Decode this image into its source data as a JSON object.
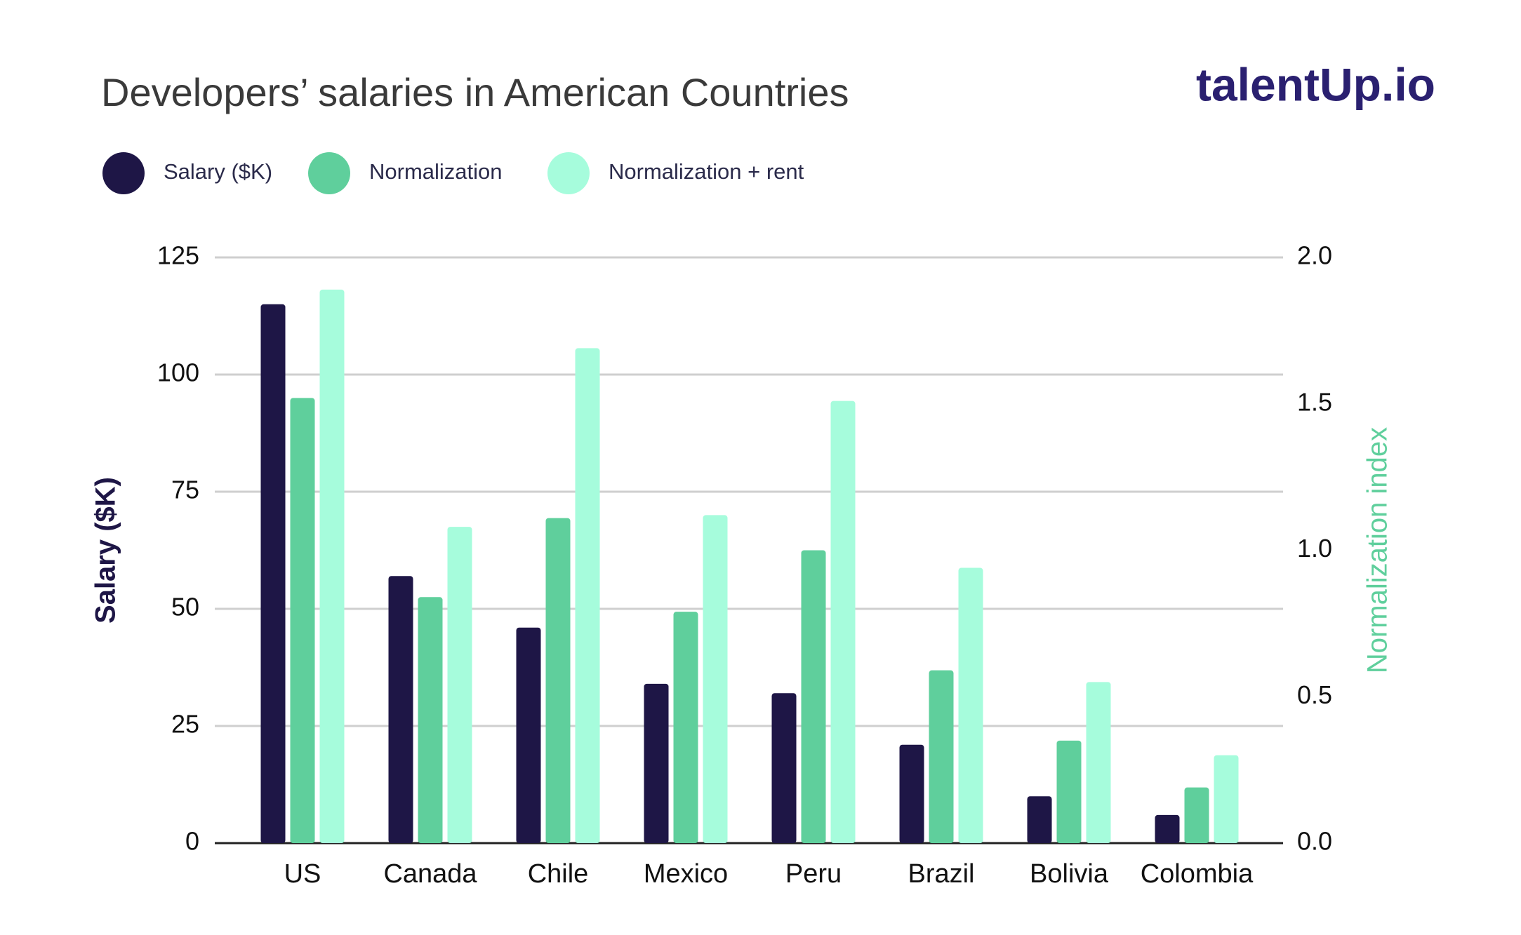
{
  "chart_data": {
    "type": "bar",
    "title": "Developers’ salaries in American Countries",
    "logo": "talentUp.io",
    "categories": [
      "US",
      "Canada",
      "Chile",
      "Mexico",
      "Peru",
      "Brazil",
      "Bolivia",
      "Colombia"
    ],
    "series": [
      {
        "name": "Salary ($K)",
        "color": "#1e1646",
        "values": [
          115,
          57,
          46,
          34,
          32,
          21,
          10,
          6
        ]
      },
      {
        "name": "Normalization",
        "color": "#5fcf9c",
        "axis": "y2",
        "values": [
          1.52,
          0.84,
          1.11,
          0.79,
          1.0,
          0.59,
          0.35,
          0.19
        ]
      },
      {
        "name": "Normalization + rent",
        "color": "#a6fcdc",
        "axis": "y2",
        "values": [
          1.89,
          1.08,
          1.69,
          1.12,
          1.51,
          0.94,
          0.55,
          0.3
        ]
      }
    ],
    "ylabel": "Salary ($K)",
    "y2label": "Normalization index",
    "ylim": [
      0,
      125
    ],
    "yticks": [
      0,
      25,
      50,
      75,
      100,
      125
    ],
    "y2lim": [
      0,
      2
    ],
    "y2ticks": [
      {
        "value": 0,
        "label": "0.0"
      },
      0.5,
      {
        "value": 1,
        "label": "1.0"
      },
      1.5,
      {
        "value": 2,
        "label": "2.0"
      }
    ],
    "grid": true
  }
}
